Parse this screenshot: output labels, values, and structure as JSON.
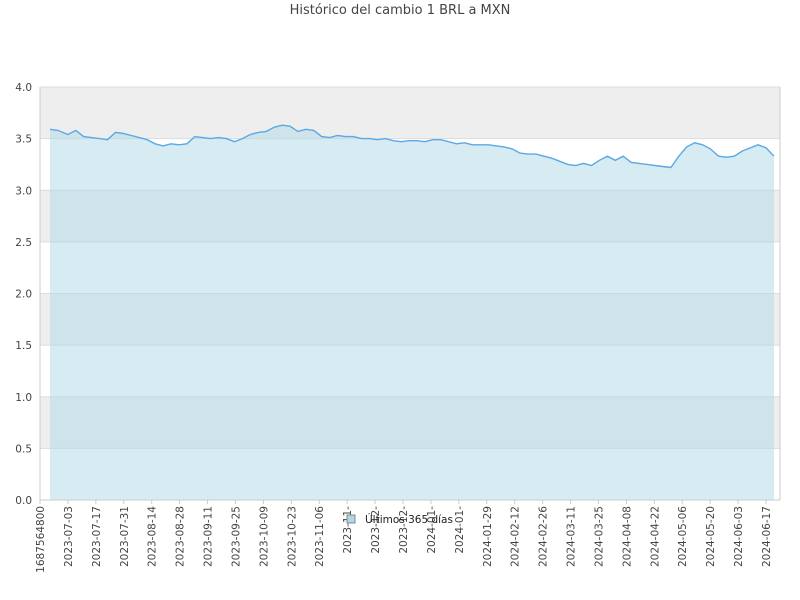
{
  "chart_data": {
    "type": "area",
    "title": "Histórico del cambio 1 BRL a MXN",
    "xlabel": "",
    "ylabel": "",
    "ylim": [
      0,
      4
    ],
    "yticks": [
      "0.0",
      "0.5",
      "1.0",
      "1.5",
      "2.0",
      "2.5",
      "3.0",
      "3.5",
      "4.0"
    ],
    "xtick_labels": [
      "1687564800",
      "2023-07-03",
      "2023-07-17",
      "2023-07-31",
      "2023-08-14",
      "2023-08-28",
      "2023-09-11",
      "2023-09-25",
      "2023-10-09",
      "2023-10-23",
      "2023-11-06",
      "2023-11-",
      "2023-12-",
      "2023-12-",
      "2024-01-",
      "2024-01-",
      "2024-01-29",
      "2024-02-12",
      "2024-02-26",
      "2024-03-11",
      "2024-03-25",
      "2024-04-08",
      "2024-04-22",
      "2024-05-06",
      "2024-05-20",
      "2024-06-03",
      "2024-06-17"
    ],
    "grid": true,
    "legend_position": "bottom-center",
    "colors": {
      "line": "#5aa9e6",
      "fill": "#add8e6",
      "band": "#eeeeee",
      "grid": "#dddddd",
      "axis": "#cccccc",
      "text": "#444444"
    },
    "series": [
      {
        "name": "Últimos 365 días",
        "x": [
          "2023-06-24",
          "2023-06-28",
          "2023-07-03",
          "2023-07-07",
          "2023-07-11",
          "2023-07-15",
          "2023-07-19",
          "2023-07-23",
          "2023-07-27",
          "2023-07-31",
          "2023-08-04",
          "2023-08-08",
          "2023-08-12",
          "2023-08-16",
          "2023-08-20",
          "2023-08-24",
          "2023-08-28",
          "2023-09-01",
          "2023-09-05",
          "2023-09-09",
          "2023-09-13",
          "2023-09-17",
          "2023-09-21",
          "2023-09-25",
          "2023-09-29",
          "2023-10-03",
          "2023-10-07",
          "2023-10-11",
          "2023-10-15",
          "2023-10-19",
          "2023-10-23",
          "2023-10-27",
          "2023-10-31",
          "2023-11-04",
          "2023-11-08",
          "2023-11-12",
          "2023-11-16",
          "2023-11-20",
          "2023-11-24",
          "2023-11-28",
          "2023-12-02",
          "2023-12-06",
          "2023-12-10",
          "2023-12-14",
          "2023-12-18",
          "2023-12-22",
          "2023-12-26",
          "2023-12-30",
          "2024-01-03",
          "2024-01-07",
          "2024-01-11",
          "2024-01-15",
          "2024-01-19",
          "2024-01-23",
          "2024-01-27",
          "2024-01-31",
          "2024-02-04",
          "2024-02-08",
          "2024-02-12",
          "2024-02-16",
          "2024-02-20",
          "2024-02-24",
          "2024-02-28",
          "2024-03-03",
          "2024-03-07",
          "2024-03-11",
          "2024-03-15",
          "2024-03-19",
          "2024-03-23",
          "2024-03-27",
          "2024-03-31",
          "2024-04-04",
          "2024-04-08",
          "2024-04-12",
          "2024-04-16",
          "2024-04-20",
          "2024-04-24",
          "2024-04-28",
          "2024-05-02",
          "2024-05-06",
          "2024-05-10",
          "2024-05-14",
          "2024-05-18",
          "2024-05-22",
          "2024-05-26",
          "2024-05-30",
          "2024-06-03",
          "2024-06-07",
          "2024-06-11",
          "2024-06-15",
          "2024-06-19",
          "2024-06-23"
        ],
        "values": [
          3.59,
          3.58,
          3.54,
          3.58,
          3.52,
          3.51,
          3.5,
          3.49,
          3.56,
          3.55,
          3.53,
          3.51,
          3.49,
          3.45,
          3.43,
          3.45,
          3.44,
          3.45,
          3.52,
          3.51,
          3.5,
          3.51,
          3.5,
          3.47,
          3.5,
          3.54,
          3.56,
          3.57,
          3.61,
          3.63,
          3.62,
          3.57,
          3.59,
          3.58,
          3.52,
          3.51,
          3.53,
          3.52,
          3.52,
          3.5,
          3.5,
          3.49,
          3.5,
          3.48,
          3.47,
          3.48,
          3.48,
          3.47,
          3.49,
          3.49,
          3.47,
          3.45,
          3.46,
          3.44,
          3.44,
          3.44,
          3.43,
          3.42,
          3.4,
          3.36,
          3.35,
          3.35,
          3.33,
          3.31,
          3.28,
          3.25,
          3.24,
          3.26,
          3.24,
          3.29,
          3.33,
          3.29,
          3.33,
          3.27,
          3.26,
          3.25,
          3.24,
          3.23,
          3.22,
          3.33,
          3.42,
          3.46,
          3.44,
          3.4,
          3.33,
          3.32,
          3.33,
          3.38,
          3.41,
          3.44,
          3.41,
          3.33
        ]
      }
    ]
  }
}
